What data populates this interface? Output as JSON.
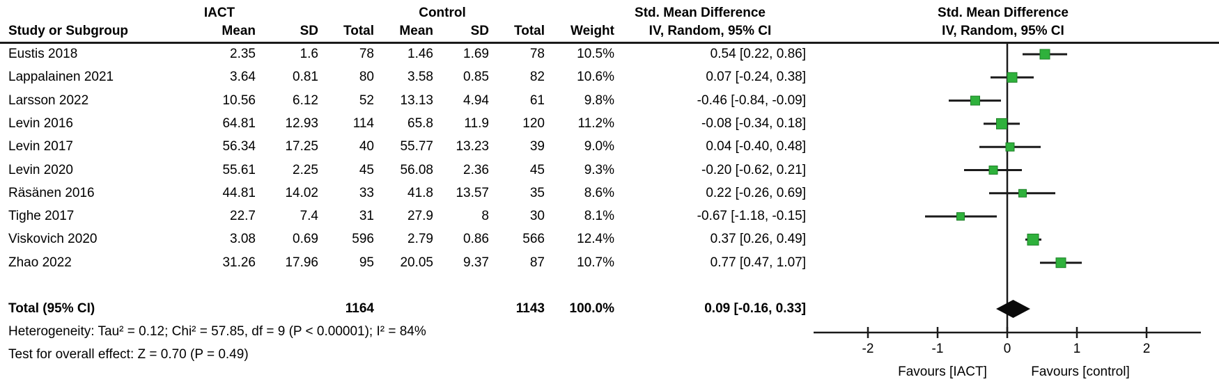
{
  "table": {
    "group1_header": "IACT",
    "group2_header": "Control",
    "col_headers": [
      "Study or Subgroup",
      "Mean",
      "SD",
      "Total",
      "Mean",
      "SD",
      "Total",
      "Weight"
    ],
    "smd_header": {
      "line1": "Std. Mean Difference",
      "line2": "IV, Random, 95% CI"
    },
    "plot_header": {
      "line1": "Std. Mean Difference",
      "line2": "IV, Random, 95% CI"
    }
  },
  "chart_data": {
    "type": "forest",
    "effect_measure": "Std. Mean Difference (IV, Random, 95% CI)",
    "x_axis": {
      "ticks": [
        -2,
        -1,
        0,
        1,
        2
      ],
      "min": -2.78,
      "max": 2.78
    },
    "favours_left": "Favours [IACT]",
    "favours_right": "Favours [control]",
    "marker_color": "#2fb13c",
    "marker_stroke": "#1c7f26",
    "line_color": "#1a1a1a",
    "studies": [
      {
        "name": "Eustis 2018",
        "mean1": "2.35",
        "sd1": "1.6",
        "total1": "78",
        "mean2": "1.46",
        "sd2": "1.69",
        "total2": "78",
        "weight": "10.5%",
        "weight_pct": 10.5,
        "ci_text": "0.54 [0.22, 0.86]",
        "est": 0.54,
        "lo": 0.22,
        "hi": 0.86
      },
      {
        "name": "Lappalainen 2021",
        "mean1": "3.64",
        "sd1": "0.81",
        "total1": "80",
        "mean2": "3.58",
        "sd2": "0.85",
        "total2": "82",
        "weight": "10.6%",
        "weight_pct": 10.6,
        "ci_text": "0.07 [-0.24, 0.38]",
        "est": 0.07,
        "lo": -0.24,
        "hi": 0.38
      },
      {
        "name": "Larsson 2022",
        "mean1": "10.56",
        "sd1": "6.12",
        "total1": "52",
        "mean2": "13.13",
        "sd2": "4.94",
        "total2": "61",
        "weight": "9.8%",
        "weight_pct": 9.8,
        "ci_text": "-0.46 [-0.84, -0.09]",
        "est": -0.46,
        "lo": -0.84,
        "hi": -0.09
      },
      {
        "name": "Levin 2016",
        "mean1": "64.81",
        "sd1": "12.93",
        "total1": "114",
        "mean2": "65.8",
        "sd2": "11.9",
        "total2": "120",
        "weight": "11.2%",
        "weight_pct": 11.2,
        "ci_text": "-0.08 [-0.34, 0.18]",
        "est": -0.08,
        "lo": -0.34,
        "hi": 0.18
      },
      {
        "name": "Levin 2017",
        "mean1": "56.34",
        "sd1": "17.25",
        "total1": "40",
        "mean2": "55.77",
        "sd2": "13.23",
        "total2": "39",
        "weight": "9.0%",
        "weight_pct": 9.0,
        "ci_text": "0.04 [-0.40, 0.48]",
        "est": 0.04,
        "lo": -0.4,
        "hi": 0.48
      },
      {
        "name": "Levin 2020",
        "mean1": "55.61",
        "sd1": "2.25",
        "total1": "45",
        "mean2": "56.08",
        "sd2": "2.36",
        "total2": "45",
        "weight": "9.3%",
        "weight_pct": 9.3,
        "ci_text": "-0.20 [-0.62, 0.21]",
        "est": -0.2,
        "lo": -0.62,
        "hi": 0.21
      },
      {
        "name": "Räsänen 2016",
        "mean1": "44.81",
        "sd1": "14.02",
        "total1": "33",
        "mean2": "41.8",
        "sd2": "13.57",
        "total2": "35",
        "weight": "8.6%",
        "weight_pct": 8.6,
        "ci_text": "0.22 [-0.26, 0.69]",
        "est": 0.22,
        "lo": -0.26,
        "hi": 0.69
      },
      {
        "name": "Tighe 2017",
        "mean1": "22.7",
        "sd1": "7.4",
        "total1": "31",
        "mean2": "27.9",
        "sd2": "8",
        "total2": "30",
        "weight": "8.1%",
        "weight_pct": 8.1,
        "ci_text": "-0.67 [-1.18, -0.15]",
        "est": -0.67,
        "lo": -1.18,
        "hi": -0.15
      },
      {
        "name": "Viskovich 2020",
        "mean1": "3.08",
        "sd1": "0.69",
        "total1": "596",
        "mean2": "2.79",
        "sd2": "0.86",
        "total2": "566",
        "weight": "12.4%",
        "weight_pct": 12.4,
        "ci_text": "0.37 [0.26, 0.49]",
        "est": 0.37,
        "lo": 0.26,
        "hi": 0.49
      },
      {
        "name": "Zhao 2022",
        "mean1": "31.26",
        "sd1": "17.96",
        "total1": "95",
        "mean2": "20.05",
        "sd2": "9.37",
        "total2": "87",
        "weight": "10.7%",
        "weight_pct": 10.7,
        "ci_text": "0.77 [0.47, 1.07]",
        "est": 0.77,
        "lo": 0.47,
        "hi": 1.07
      }
    ],
    "total": {
      "label": "Total (95% CI)",
      "total1": "1164",
      "total2": "1143",
      "weight": "100.0%",
      "ci_text": "0.09 [-0.16, 0.33]",
      "est": 0.09,
      "lo": -0.16,
      "hi": 0.33
    }
  },
  "footer": {
    "heterogeneity": "Heterogeneity: Tau² = 0.12; Chi² = 57.85, df = 9 (P < 0.00001); I² = 84%",
    "overall_effect": "Test for overall effect: Z = 0.70 (P = 0.49)"
  }
}
